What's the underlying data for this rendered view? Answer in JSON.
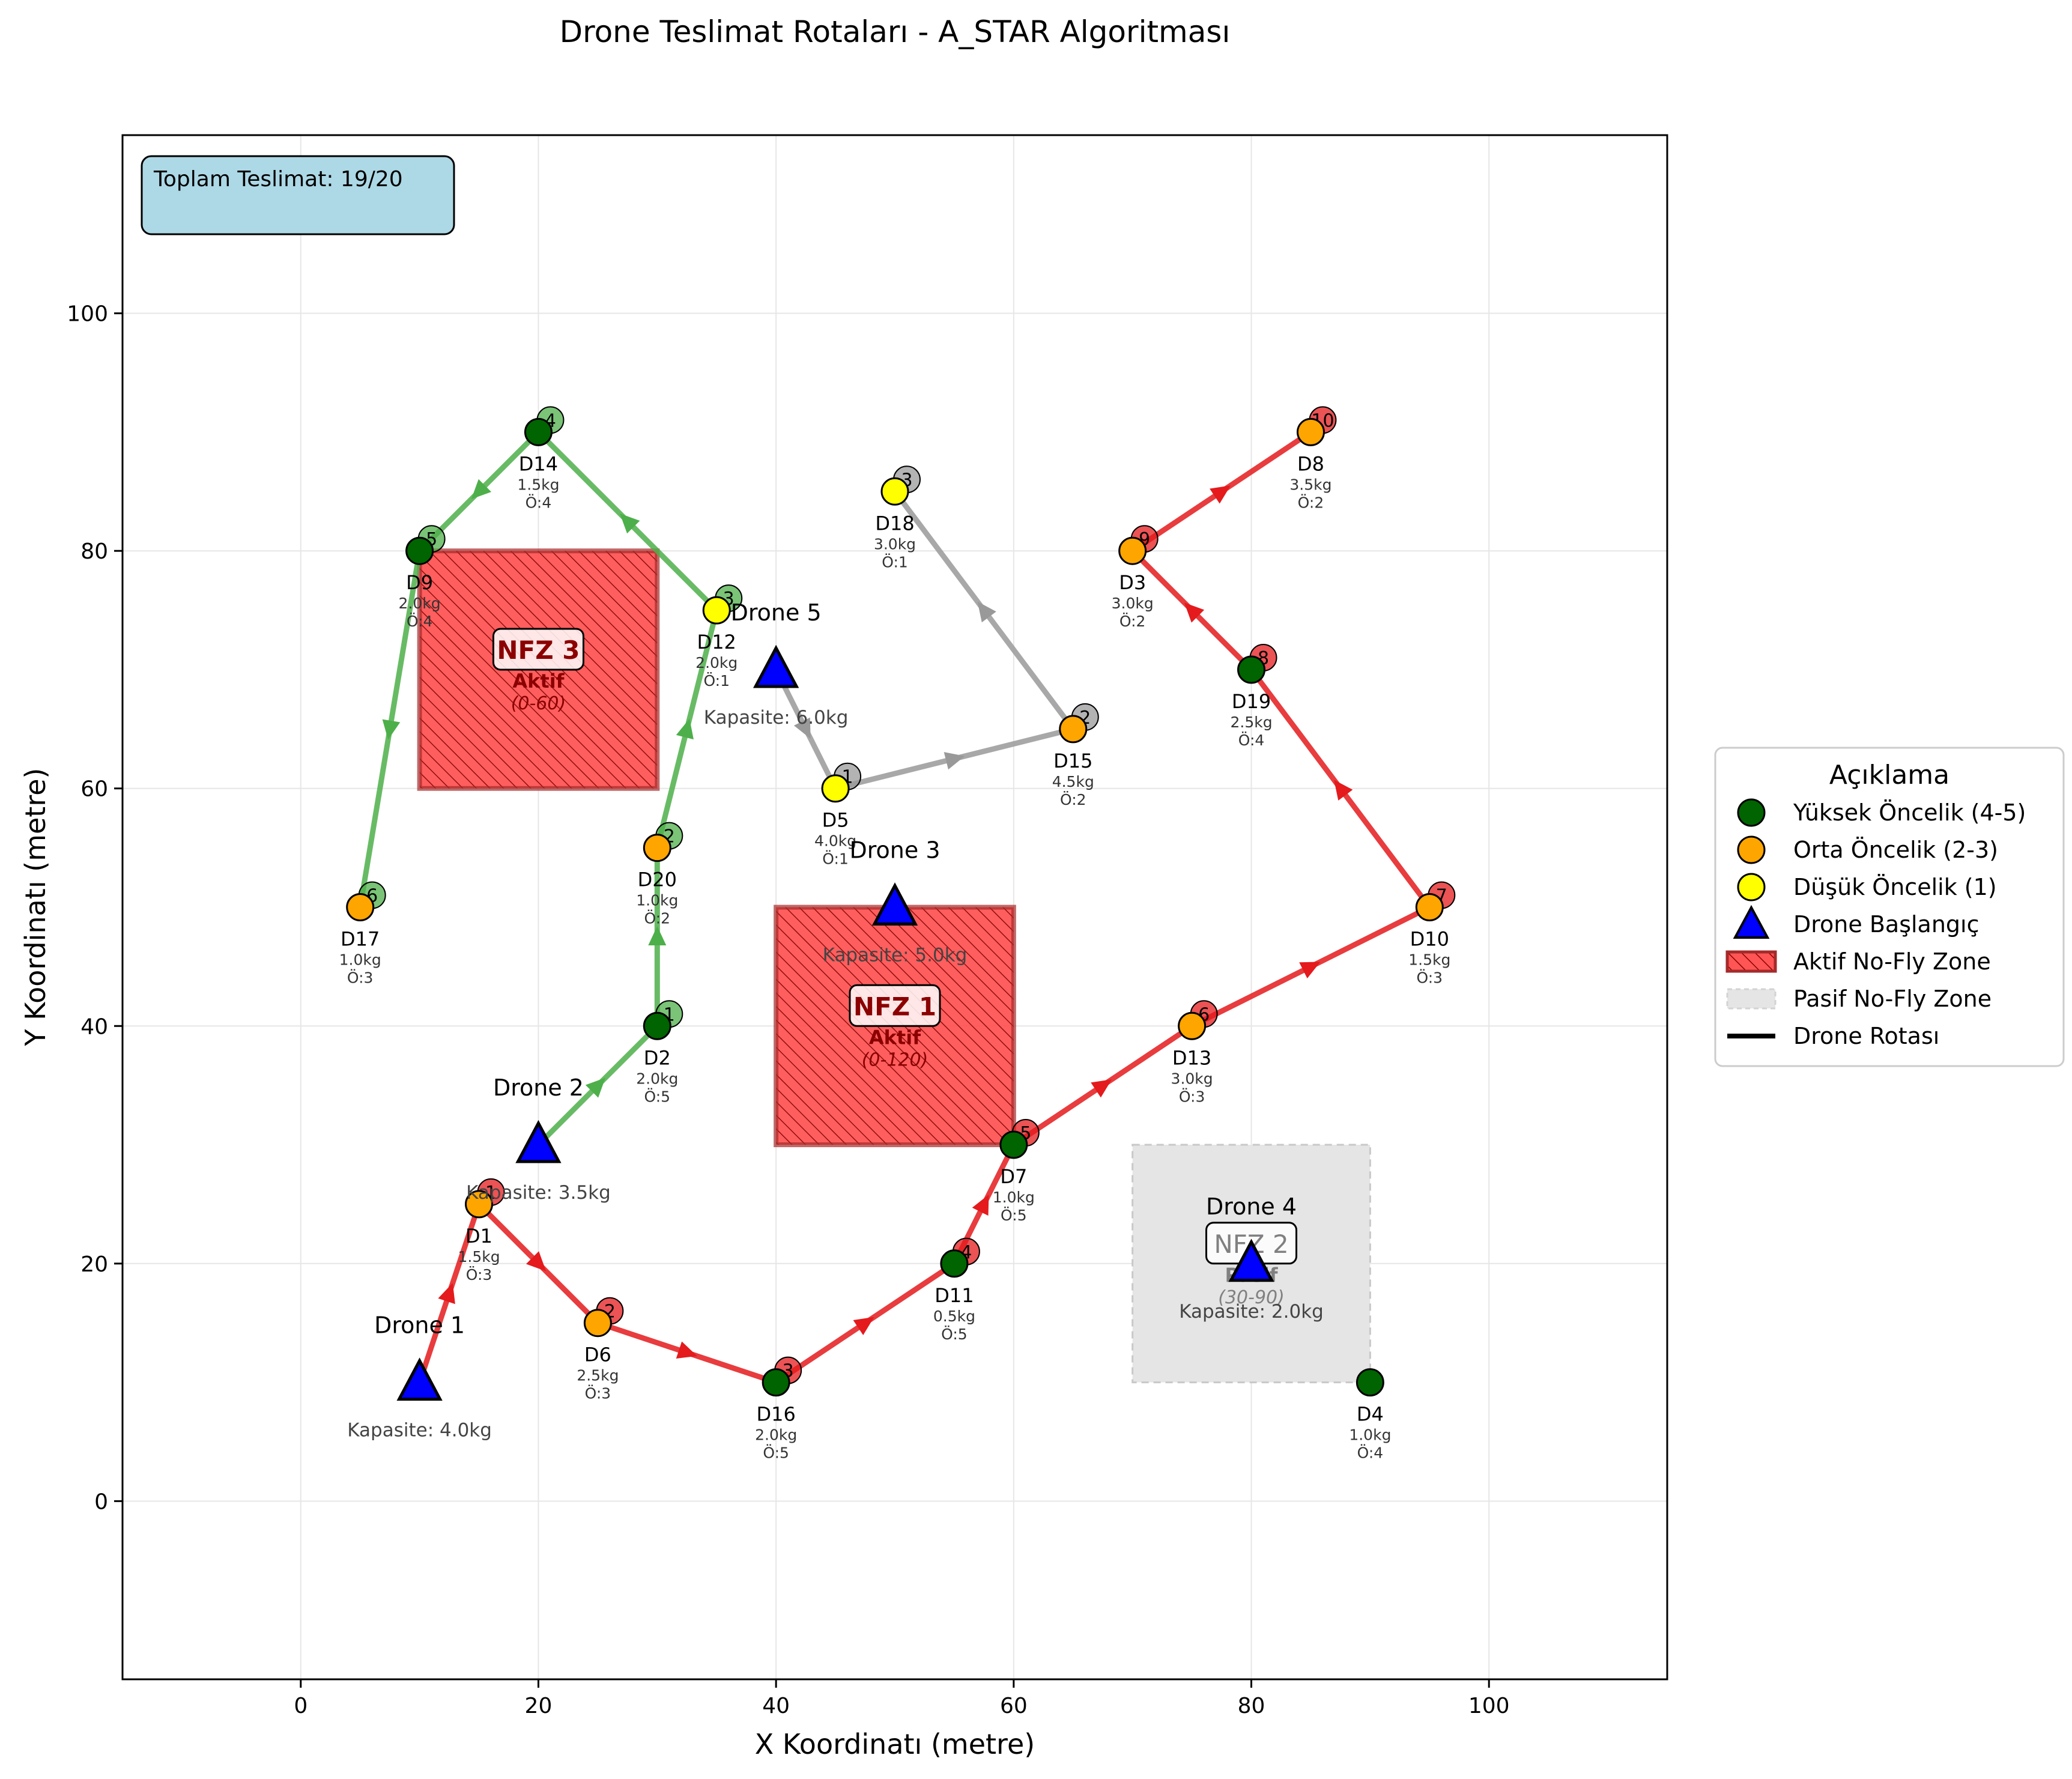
{
  "chart_data": {
    "type": "scatter",
    "title": "Drone Teslimat Rotaları - A_STAR Algoritması",
    "xlabel": "X Koordinatı (metre)",
    "ylabel": "Y Koordinatı (metre)",
    "xlim": [
      -15,
      115
    ],
    "ylim": [
      -15,
      115
    ],
    "xticks": [
      0,
      20,
      40,
      60,
      80,
      100
    ],
    "yticks": [
      0,
      20,
      40,
      60,
      80,
      100
    ],
    "xtick_labels": [
      "0",
      "20",
      "40",
      "60",
      "80",
      "100"
    ],
    "ytick_labels": [
      "0",
      "20",
      "40",
      "60",
      "80",
      "100"
    ],
    "grid": true,
    "info_box": "Toplam Teslimat: 19/20",
    "no_fly_zones": [
      {
        "name": "NFZ 1",
        "x0": 40,
        "y0": 30,
        "x1": 60,
        "y1": 50,
        "status": "Aktif",
        "time": "(0-120)",
        "active": true
      },
      {
        "name": "NFZ 2",
        "x0": 70,
        "y0": 10,
        "x1": 90,
        "y1": 30,
        "status": "Pasif",
        "time": "(30-90)",
        "active": false
      },
      {
        "name": "NFZ 3",
        "x0": 10,
        "y0": 60,
        "x1": 30,
        "y1": 80,
        "status": "Aktif",
        "time": "(0-60)",
        "active": true
      }
    ],
    "deliveries": [
      {
        "id": "D1",
        "x": 15,
        "y": 25,
        "weight": "1.5kg",
        "prio": "Ö:3",
        "color": "#ffa500"
      },
      {
        "id": "D2",
        "x": 30,
        "y": 40,
        "weight": "2.0kg",
        "prio": "Ö:5",
        "color": "#006400"
      },
      {
        "id": "D3",
        "x": 70,
        "y": 80,
        "weight": "3.0kg",
        "prio": "Ö:2",
        "color": "#ffa500"
      },
      {
        "id": "D4",
        "x": 90,
        "y": 10,
        "weight": "1.0kg",
        "prio": "Ö:4",
        "color": "#006400"
      },
      {
        "id": "D5",
        "x": 45,
        "y": 60,
        "weight": "4.0kg",
        "prio": "Ö:1",
        "color": "#ffff00"
      },
      {
        "id": "D6",
        "x": 25,
        "y": 15,
        "weight": "2.5kg",
        "prio": "Ö:3",
        "color": "#ffa500"
      },
      {
        "id": "D7",
        "x": 60,
        "y": 30,
        "weight": "1.0kg",
        "prio": "Ö:5",
        "color": "#006400"
      },
      {
        "id": "D8",
        "x": 85,
        "y": 90,
        "weight": "3.5kg",
        "prio": "Ö:2",
        "color": "#ffa500"
      },
      {
        "id": "D9",
        "x": 10,
        "y": 80,
        "weight": "2.0kg",
        "prio": "Ö:4",
        "color": "#006400"
      },
      {
        "id": "D10",
        "x": 95,
        "y": 50,
        "weight": "1.5kg",
        "prio": "Ö:3",
        "color": "#ffa500"
      },
      {
        "id": "D11",
        "x": 55,
        "y": 20,
        "weight": "0.5kg",
        "prio": "Ö:5",
        "color": "#006400"
      },
      {
        "id": "D12",
        "x": 35,
        "y": 75,
        "weight": "2.0kg",
        "prio": "Ö:1",
        "color": "#ffff00"
      },
      {
        "id": "D13",
        "x": 75,
        "y": 40,
        "weight": "3.0kg",
        "prio": "Ö:3",
        "color": "#ffa500"
      },
      {
        "id": "D14",
        "x": 20,
        "y": 90,
        "weight": "1.5kg",
        "prio": "Ö:4",
        "color": "#006400"
      },
      {
        "id": "D15",
        "x": 65,
        "y": 65,
        "weight": "4.5kg",
        "prio": "Ö:2",
        "color": "#ffa500"
      },
      {
        "id": "D16",
        "x": 40,
        "y": 10,
        "weight": "2.0kg",
        "prio": "Ö:5",
        "color": "#006400"
      },
      {
        "id": "D17",
        "x": 5,
        "y": 50,
        "weight": "1.0kg",
        "prio": "Ö:3",
        "color": "#ffa500"
      },
      {
        "id": "D18",
        "x": 50,
        "y": 85,
        "weight": "3.0kg",
        "prio": "Ö:1",
        "color": "#ffff00"
      },
      {
        "id": "D19",
        "x": 80,
        "y": 70,
        "weight": "2.5kg",
        "prio": "Ö:4",
        "color": "#006400"
      },
      {
        "id": "D20",
        "x": 30,
        "y": 55,
        "weight": "1.0kg",
        "prio": "Ö:2",
        "color": "#ffa500"
      }
    ],
    "drones": [
      {
        "name": "Drone 1",
        "x": 10,
        "y": 10,
        "capacity": "Kapasite: 4.0kg"
      },
      {
        "name": "Drone 2",
        "x": 20,
        "y": 30,
        "capacity": "Kapasite: 3.5kg"
      },
      {
        "name": "Drone 3",
        "x": 50,
        "y": 50,
        "capacity": "Kapasite: 5.0kg"
      },
      {
        "name": "Drone 4",
        "x": 80,
        "y": 20,
        "capacity": "Kapasite: 2.0kg"
      },
      {
        "name": "Drone 5",
        "x": 40,
        "y": 70,
        "capacity": "Kapasite: 6.0kg"
      }
    ],
    "routes": [
      {
        "color": "#e41a1c",
        "start": [
          10,
          10
        ],
        "stops": [
          "D1",
          "D6",
          "D16",
          "D11",
          "D7",
          "D13",
          "D10",
          "D19",
          "D3",
          "D8"
        ]
      },
      {
        "color": "#4daf4a",
        "start": [
          20,
          30
        ],
        "stops": [
          "D2",
          "D20",
          "D12",
          "D14",
          "D9",
          "D17"
        ]
      },
      {
        "color": "#999999",
        "start": [
          40,
          70
        ],
        "stops": [
          "D5",
          "D15",
          "D18"
        ]
      }
    ],
    "legend": {
      "title": "Açıklama",
      "position": "right",
      "items": [
        {
          "label": "Yüksek Öncelik (4-5)",
          "kind": "circle",
          "color": "#006400"
        },
        {
          "label": "Orta Öncelik (2-3)",
          "kind": "circle",
          "color": "#ffa500"
        },
        {
          "label": "Düşük Öncelik (1)",
          "kind": "circle",
          "color": "#ffff00"
        },
        {
          "label": "Drone Başlangıç",
          "kind": "triangle",
          "color": "#0000ff"
        },
        {
          "label": "Aktif No-Fly Zone",
          "kind": "hatch",
          "color": "#ff0000"
        },
        {
          "label": "Pasif No-Fly Zone",
          "kind": "gray",
          "color": "#d3d3d3"
        },
        {
          "label": "Drone Rotası",
          "kind": "line",
          "color": "#000000"
        }
      ]
    }
  }
}
